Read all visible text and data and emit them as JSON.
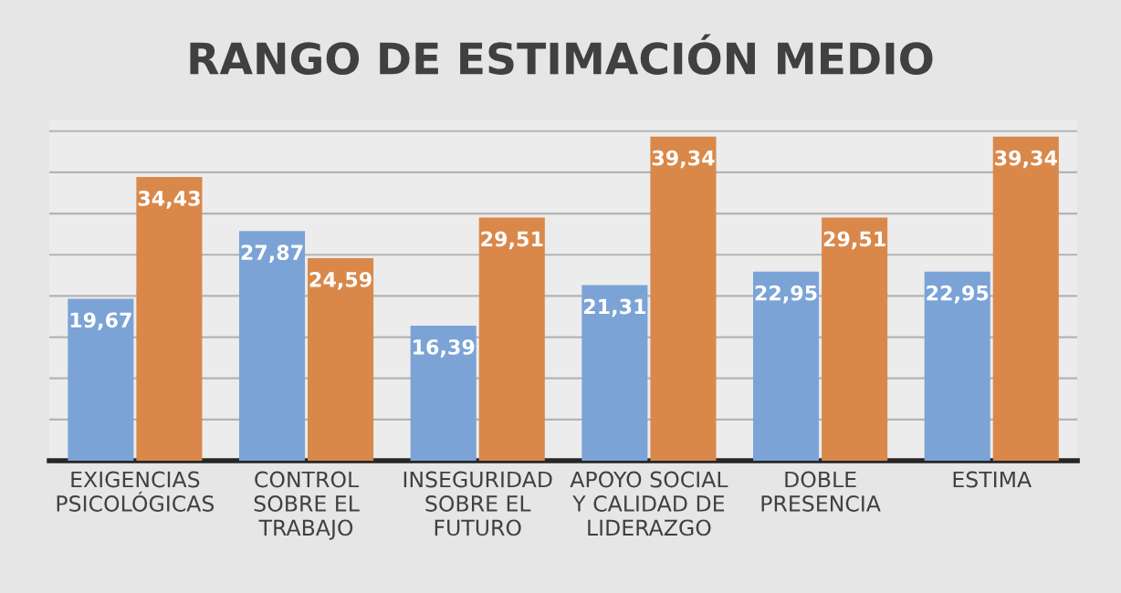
{
  "chart_data": {
    "type": "bar",
    "title": "RANGO DE ESTIMACIÓN MEDIO",
    "categories": [
      "EXIGENCIAS\nPSICOLÓGICAS",
      "CONTROL\nSOBRE EL\nTRABAJO",
      "INSEGURIDAD\nSOBRE EL\nFUTURO",
      "APOYO SOCIAL\nY CALIDAD DE\nLIDERAZGO",
      "DOBLE\nPRESENCIA",
      "ESTIMA"
    ],
    "series": [
      {
        "color": "#7ba3d6",
        "values": [
          19.67,
          27.87,
          16.39,
          21.31,
          22.95,
          22.95
        ],
        "value_labels": [
          "19,67",
          "27,87",
          "16,39",
          "21,31",
          "22,95",
          "22,95"
        ]
      },
      {
        "color": "#d9884a",
        "values": [
          34.43,
          24.59,
          29.51,
          39.34,
          29.51,
          39.34
        ],
        "value_labels": [
          "34,43",
          "24,59",
          "29,51",
          "39,34",
          "29,51",
          "39,34"
        ]
      }
    ],
    "grid": "y",
    "tick_labels": "x"
  }
}
